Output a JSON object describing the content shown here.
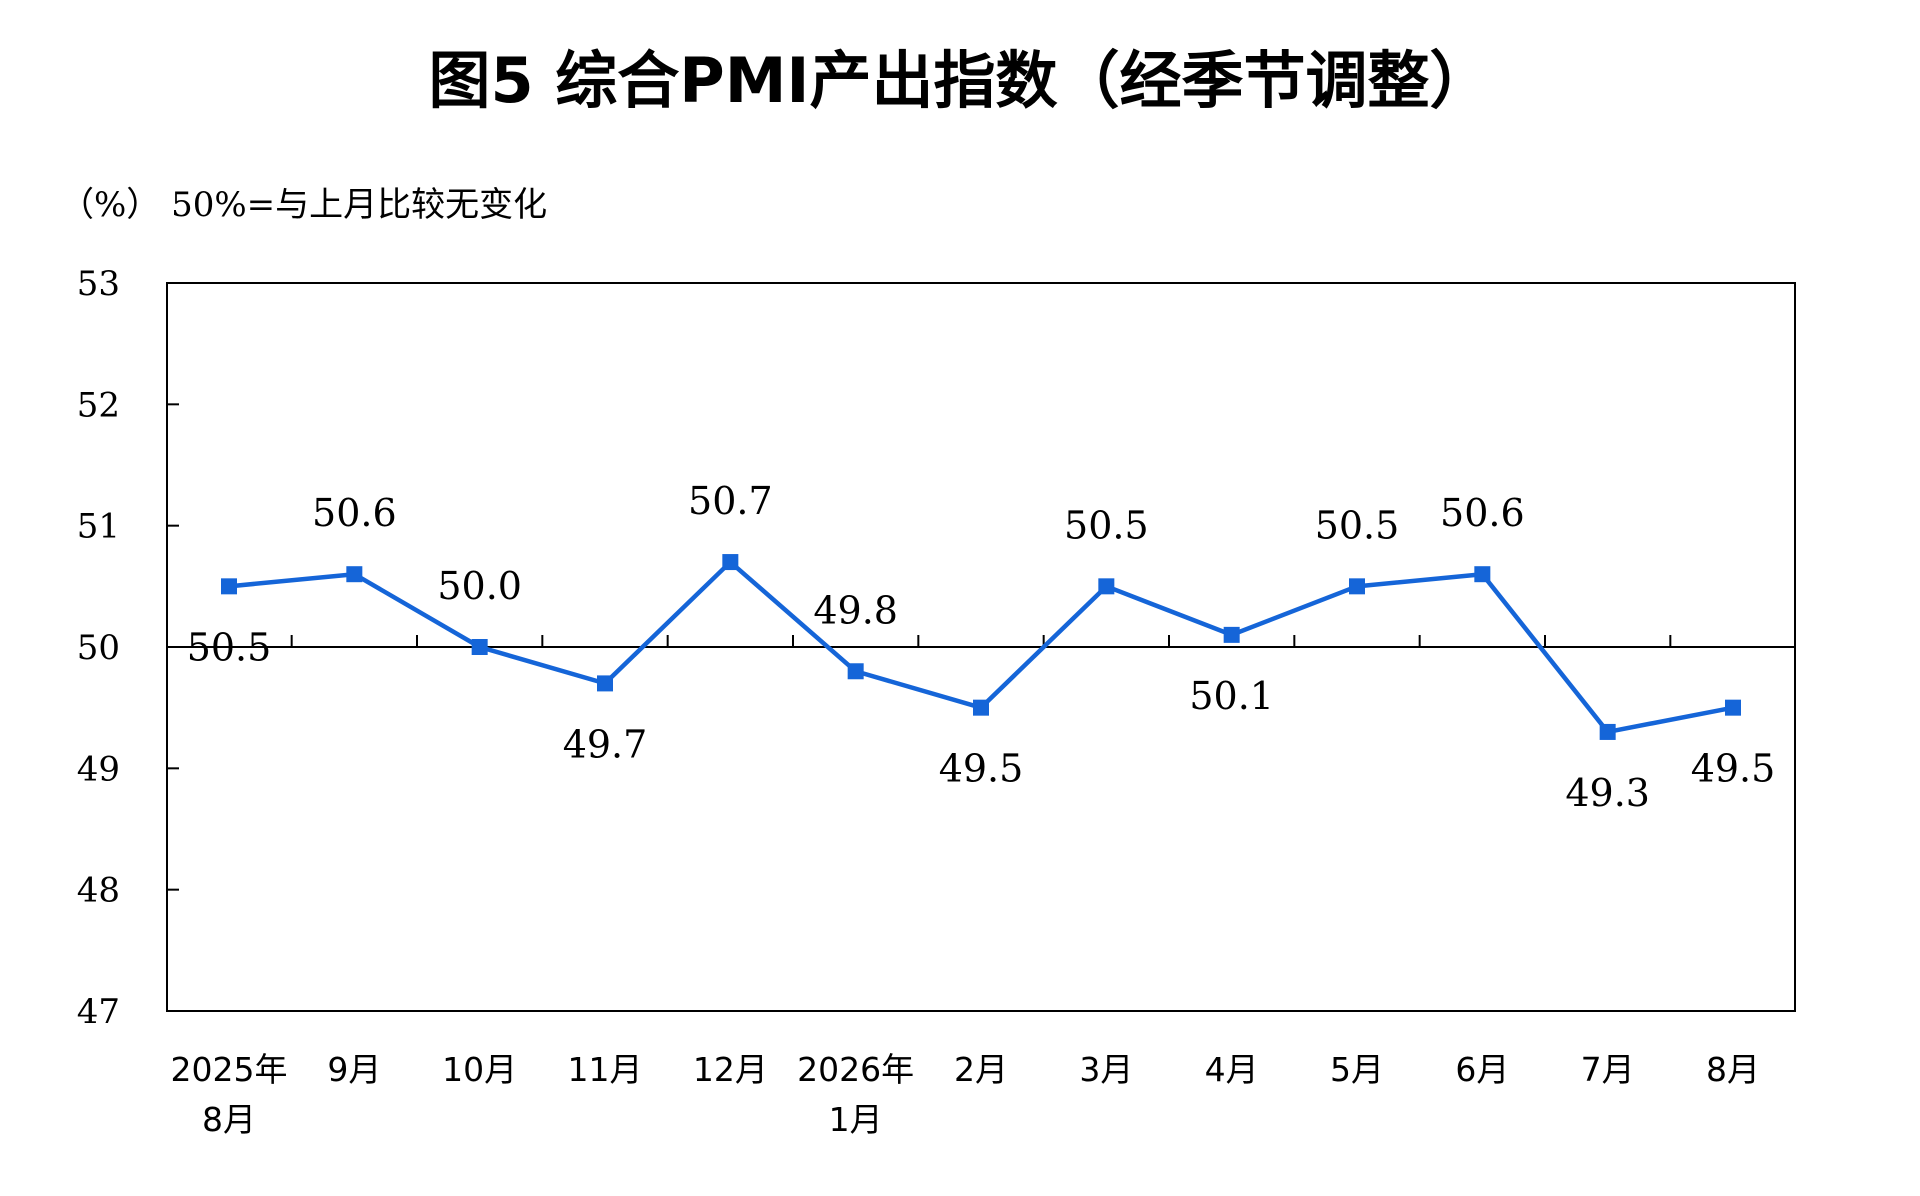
{
  "chart_data": {
    "type": "line",
    "title": "图5 综合PMI产出指数（经季节调整）",
    "unit_note": "（%） 50%=与上月比较无变化",
    "categories": [
      [
        "2025年",
        "8月"
      ],
      [
        "9月"
      ],
      [
        "10月"
      ],
      [
        "11月"
      ],
      [
        "12月"
      ],
      [
        "2026年",
        "1月"
      ],
      [
        "2月"
      ],
      [
        "3月"
      ],
      [
        "4月"
      ],
      [
        "5月"
      ],
      [
        "6月"
      ],
      [
        "7月"
      ],
      [
        "8月"
      ]
    ],
    "series": [
      {
        "values": [
          50.5,
          50.6,
          50.0,
          49.7,
          50.7,
          49.8,
          49.5,
          50.5,
          50.1,
          50.5,
          50.6,
          49.3,
          49.5
        ],
        "labels": [
          "50.5",
          "50.6",
          "50.0",
          "49.7",
          "50.7",
          "49.8",
          "49.5",
          "50.5",
          "50.1",
          "50.5",
          "50.6",
          "49.3",
          "49.5"
        ],
        "color": "#1565d8"
      }
    ],
    "ylim": [
      47,
      53
    ],
    "yticks": [
      47,
      48,
      49,
      50,
      51,
      52,
      53
    ],
    "reference_line": 50,
    "grid": false,
    "legend": "none"
  }
}
